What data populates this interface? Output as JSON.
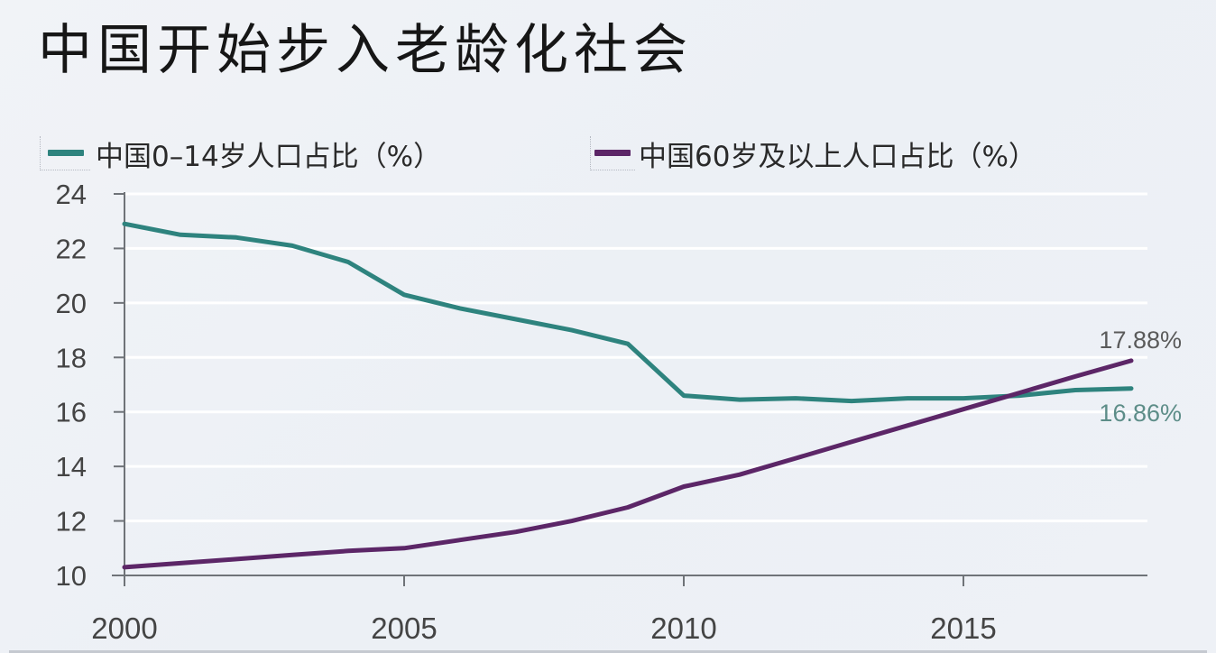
{
  "title": "中国开始步入老龄化社会",
  "legend": [
    {
      "label": "中国0–14岁人口占比（%）",
      "color": "#2e837e"
    },
    {
      "label": "中国60岁及以上人口占比（%）",
      "color": "#5c2667"
    }
  ],
  "annotations": {
    "elderly_end_label": "17.88%",
    "children_end_label": "16.86%"
  },
  "axes": {
    "y_ticks": [
      "24",
      "22",
      "20",
      "18",
      "16",
      "14",
      "12",
      "10"
    ],
    "x_ticks": [
      "2000",
      "2005",
      "2010",
      "2015"
    ]
  },
  "colors": {
    "background": "#eef1f6",
    "gridline": "#ffffff",
    "axis": "#6f7378",
    "children_line": "#2e837e",
    "elderly_line": "#5c2667",
    "children_label": "#5d8d88",
    "elderly_label": "#5a5a5a"
  },
  "chart_data": {
    "type": "line",
    "title": "中国开始步入老龄化社会",
    "xlabel": "",
    "ylabel": "",
    "x": [
      2000,
      2001,
      2002,
      2003,
      2004,
      2005,
      2006,
      2007,
      2008,
      2009,
      2010,
      2011,
      2012,
      2013,
      2014,
      2015,
      2016,
      2017,
      2018
    ],
    "series": [
      {
        "name": "中国0–14岁人口占比（%）",
        "color": "#2e837e",
        "values": [
          22.9,
          22.5,
          22.4,
          22.1,
          21.5,
          20.3,
          19.8,
          19.4,
          19.0,
          18.5,
          16.6,
          16.45,
          16.5,
          16.4,
          16.5,
          16.5,
          16.6,
          16.8,
          16.86
        ]
      },
      {
        "name": "中国60岁及以上人口占比（%）",
        "color": "#5c2667",
        "values": [
          10.3,
          10.45,
          10.6,
          10.75,
          10.9,
          11.0,
          11.3,
          11.6,
          12.0,
          12.5,
          13.26,
          13.7,
          14.3,
          14.9,
          15.5,
          16.1,
          16.7,
          17.3,
          17.88
        ]
      }
    ],
    "ylim": [
      10,
      24
    ],
    "xlim": [
      2000,
      2018
    ],
    "y_ticks": [
      10,
      12,
      14,
      16,
      18,
      20,
      22,
      24
    ],
    "x_ticks": [
      2000,
      2005,
      2010,
      2015
    ],
    "grid": {
      "horizontal": true,
      "vertical": false,
      "color": "#ffffff"
    },
    "legend_position": "top",
    "annotations": [
      {
        "x": 2018,
        "y": 17.88,
        "text": "17.88%",
        "series": "中国60岁及以上人口占比（%）",
        "position": "above"
      },
      {
        "x": 2018,
        "y": 16.86,
        "text": "16.86%",
        "series": "中国0–14岁人口占比（%）",
        "position": "below"
      }
    ]
  }
}
